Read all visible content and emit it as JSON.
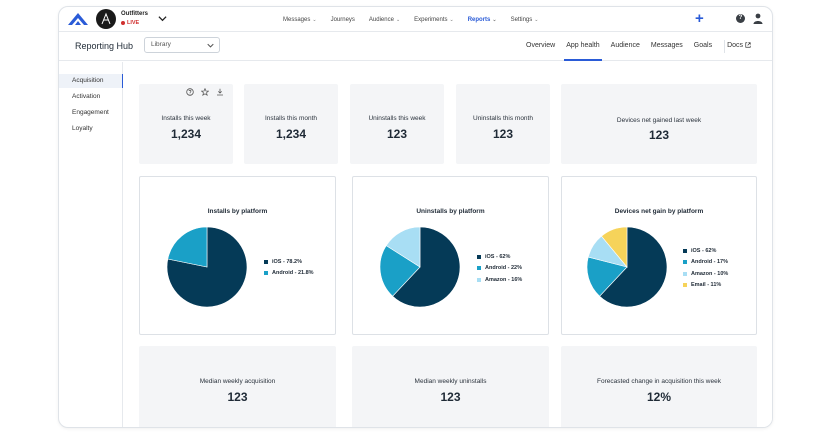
{
  "nav": {
    "org_name": "Outfitters",
    "env_status": "LIVE",
    "menu": [
      {
        "label": "Messages",
        "active": false
      },
      {
        "label": "Journeys",
        "active": false
      },
      {
        "label": "Audience",
        "active": false
      },
      {
        "label": "Experiments",
        "active": false
      },
      {
        "label": "Reports",
        "active": true
      },
      {
        "label": "Settings",
        "active": false
      }
    ],
    "add_label": "+",
    "help_label": "?"
  },
  "subheader": {
    "title": "Reporting Hub",
    "select_value": "Library",
    "tabs": [
      "Overview",
      "App health",
      "Audience",
      "Messages",
      "Goals"
    ],
    "active_tab": "App health",
    "docs_label": "Docs"
  },
  "sidebar": {
    "items": [
      "Acquisition",
      "Activation",
      "Engagement",
      "Loyalty"
    ],
    "active": "Acquisition"
  },
  "stats": [
    {
      "label": "Installs this week",
      "value": "1,234"
    },
    {
      "label": "Installs this month",
      "value": "1,234"
    },
    {
      "label": "Uninstalls this week",
      "value": "123"
    },
    {
      "label": "Uninstalls this month",
      "value": "123"
    },
    {
      "label": "Devices net gained last week",
      "value": "123"
    }
  ],
  "colors": {
    "ios": "#053a57",
    "android": "#1aa0c7",
    "amazon": "#a8def4",
    "email": "#f6d35a",
    "accent": "#2a5bd7"
  },
  "chart_data": [
    {
      "type": "pie",
      "title": "Installs by platform",
      "categories": [
        "iOS",
        "Android"
      ],
      "values": [
        78.2,
        21.8
      ],
      "legend_labels": [
        "iOS - 78.2%",
        "Android - 21.8%"
      ],
      "colors": [
        "#053a57",
        "#1aa0c7"
      ],
      "legend": "right"
    },
    {
      "type": "pie",
      "title": "Uninstalls by platform",
      "categories": [
        "iOS",
        "Android",
        "Amazon"
      ],
      "values": [
        62,
        22,
        16
      ],
      "legend_labels": [
        "iOS - 62%",
        "Android - 22%",
        "Amazon - 16%"
      ],
      "colors": [
        "#053a57",
        "#1aa0c7",
        "#a8def4"
      ],
      "legend": "right"
    },
    {
      "type": "pie",
      "title": "Devices net gain by platform",
      "categories": [
        "iOS",
        "Android",
        "Amazon",
        "Email"
      ],
      "values": [
        62,
        17,
        10,
        11
      ],
      "legend_labels": [
        "iOS - 62%",
        "Android - 17%",
        "Amazon - 10%",
        "Email - 11%"
      ],
      "colors": [
        "#053a57",
        "#1aa0c7",
        "#a8def4",
        "#f6d35a"
      ],
      "legend": "right"
    }
  ],
  "bottom_stats": [
    {
      "label": "Median weekly acquisition",
      "value": "123"
    },
    {
      "label": "Median weekly uninstalls",
      "value": "123"
    },
    {
      "label": "Forecasted change in acquisition this week",
      "value": "12%"
    }
  ]
}
